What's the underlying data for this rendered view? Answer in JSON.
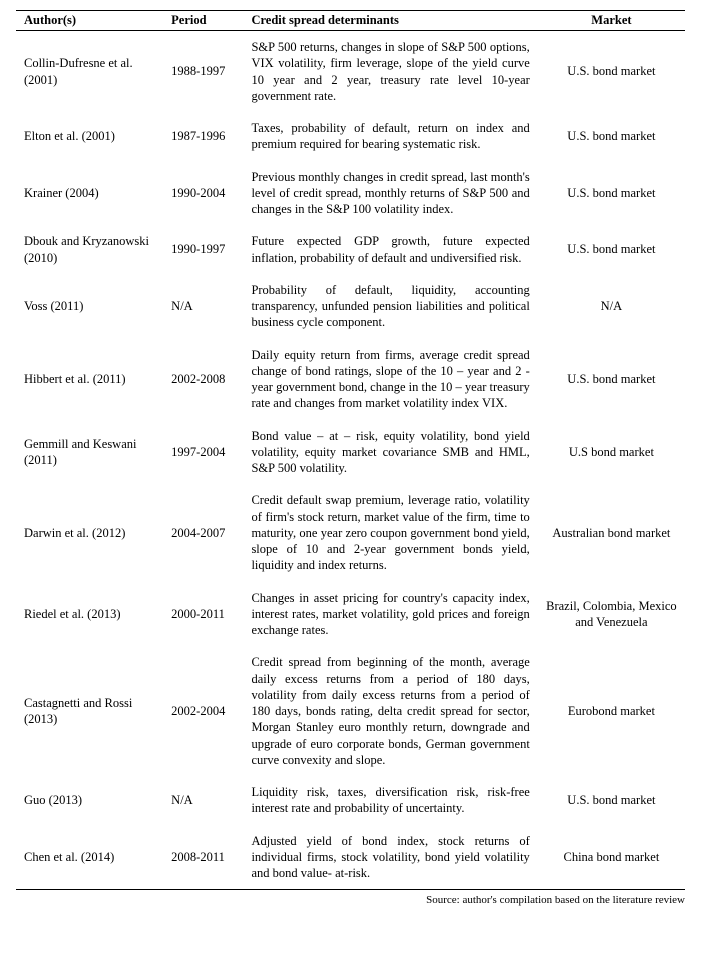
{
  "table": {
    "headers": {
      "authors": "Author(s)",
      "period": "Period",
      "determinants": "Credit spread determinants",
      "market": "Market"
    },
    "rows": [
      {
        "authors": "Collin-Dufresne et al. (2001)",
        "period": "1988-1997",
        "determinants": "S&P 500 returns, changes in slope of S&P 500 options, VIX volatility, firm leverage, slope of the yield curve 10 year and 2 year, treasury rate level 10-year government rate.",
        "market": "U.S. bond market"
      },
      {
        "authors": "Elton et al. (2001)",
        "period": "1987-1996",
        "determinants": "Taxes, probability of default, return on index and premium required for bearing systematic risk.",
        "market": "U.S. bond market"
      },
      {
        "authors": "Krainer (2004)",
        "period": "1990-2004",
        "determinants": "Previous monthly changes in credit spread, last month's level of credit spread, monthly returns of S&P 500 and changes in the S&P 100 volatility index.",
        "market": "U.S. bond market"
      },
      {
        "authors": "Dbouk and Kryzanowski (2010)",
        "period": "1990-1997",
        "determinants": "Future expected GDP growth, future expected inflation, probability of default and undiversified risk.",
        "market": "U.S. bond market"
      },
      {
        "authors": "Voss (2011)",
        "period": "N/A",
        "determinants": "Probability of default, liquidity, accounting transparency, unfunded pension liabilities and political business cycle component.",
        "market": "N/A"
      },
      {
        "authors": "Hibbert et al. (2011)",
        "period": "2002-2008",
        "determinants": "Daily equity return from firms, average credit spread change of bond ratings, slope of the 10 – year and 2 - year government bond, change in the 10 – year treasury rate and changes from market volatility index VIX.",
        "market": "U.S. bond market"
      },
      {
        "authors": "Gemmill and Keswani (2011)",
        "period": "1997-2004",
        "determinants": "Bond value – at – risk, equity volatility, bond yield volatility, equity market covariance SMB and HML, S&P 500 volatility.",
        "market": "U.S bond market"
      },
      {
        "authors": "Darwin et al. (2012)",
        "period": "2004-2007",
        "determinants": "Credit default swap premium, leverage ratio, volatility of firm's stock return, market value of the firm, time to maturity, one year zero coupon government bond yield, slope of 10 and 2-year government bonds yield, liquidity and index returns.",
        "market": "Australian bond market"
      },
      {
        "authors": "Riedel et al. (2013)",
        "period": "2000-2011",
        "determinants": "Changes in asset pricing for country's capacity index, interest rates, market volatility, gold prices and foreign exchange rates.",
        "market": "Brazil, Colombia, Mexico and Venezuela"
      },
      {
        "authors": "Castagnetti and Rossi (2013)",
        "period": "2002-2004",
        "determinants": "Credit spread from beginning of the month, average daily excess returns from a period of 180 days, volatility from daily excess returns from a period of 180 days, bonds rating, delta credit spread for sector, Morgan Stanley euro monthly return, downgrade and upgrade of euro corporate bonds, German government curve convexity and slope.",
        "market": "Eurobond market"
      },
      {
        "authors": "Guo (2013)",
        "period": "N/A",
        "determinants": "Liquidity risk, taxes, diversification risk, risk-free interest rate and probability of uncertainty.",
        "market": "U.S. bond market"
      },
      {
        "authors": "Chen et al. (2014)",
        "period": "2008-2011",
        "determinants": "Adjusted yield of bond index, stock returns of individual firms, stock volatility, bond yield volatility and bond value- at-risk.",
        "market": "China bond market"
      }
    ]
  },
  "source_note": "Source: author's compilation based on the literature review"
}
